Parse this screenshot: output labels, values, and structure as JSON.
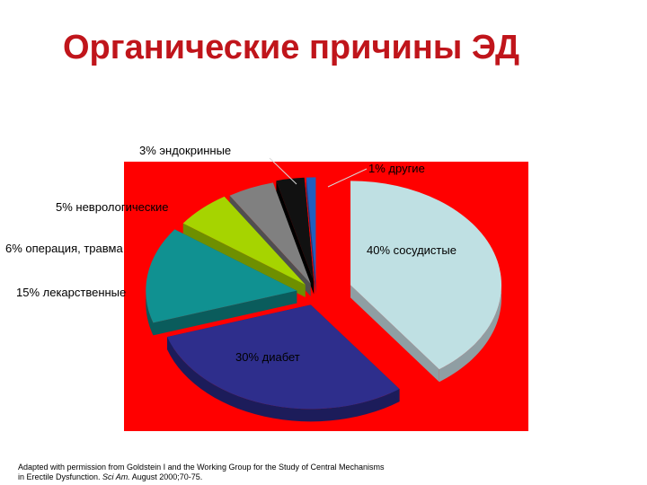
{
  "title": "Органические причины ЭД",
  "colors": {
    "title": "#c0151b",
    "plot_background": "#ff0000"
  },
  "chart_data": {
    "type": "pie",
    "style": "3d-exploded",
    "title": "Органические причины ЭД",
    "slices": [
      {
        "label": "40% сосудистые",
        "value": 40,
        "color": "#bfe0e3",
        "side": "#8f9ea3"
      },
      {
        "label": "30% диабет",
        "value": 30,
        "color": "#2e2e8c",
        "side": "#1c1c5a"
      },
      {
        "label": "15% лекарственные",
        "value": 15,
        "color": "#109191",
        "side": "#0a5c5c"
      },
      {
        "label": "6% операция, травма",
        "value": 6,
        "color": "#a6d400",
        "side": "#6e8f00"
      },
      {
        "label": "5% неврологические",
        "value": 5,
        "color": "#808080",
        "side": "#4f4f4f"
      },
      {
        "label": "3% эндокринные",
        "value": 3,
        "color": "#111111",
        "side": "#000000"
      },
      {
        "label": "1% другие",
        "value": 1,
        "color": "#1f5fbf",
        "side": "#123b7a"
      }
    ]
  },
  "source": {
    "line1": "Adapted with permission from Goldstein I and the Working Group for the Study of Central Mechanisms",
    "line2_plain": "in Erectile Dysfunction. ",
    "line2_italic": "Sci Am.",
    "line2_tail": " August 2000;70-75."
  }
}
